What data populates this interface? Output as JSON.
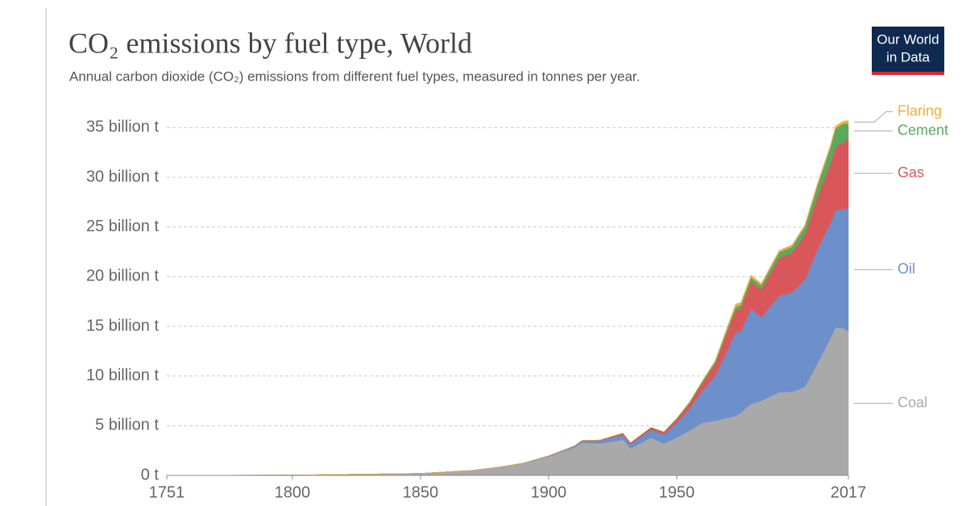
{
  "chart_data": {
    "type": "stacked_area",
    "title": "CO₂ emissions by fuel type, World",
    "subtitle": "Annual carbon dioxide (CO₂) emissions from different fuel types, measured in tonnes per year.",
    "logo": [
      "Our World",
      "in Data"
    ],
    "x": [
      1751,
      1800,
      1850,
      1870,
      1880,
      1890,
      1900,
      1910,
      1913,
      1920,
      1929,
      1932,
      1940,
      1945,
      1950,
      1955,
      1960,
      1965,
      1970,
      1973,
      1975,
      1979,
      1983,
      1990,
      1995,
      2000,
      2005,
      2010,
      2012,
      2015,
      2017
    ],
    "series": [
      {
        "name": "Coal",
        "color": "#a9a9a9",
        "values": [
          9000000,
          30000000,
          200000000,
          500000000,
          800000000,
          1200000000,
          1900000000,
          2800000000,
          3300000000,
          3200000000,
          3600000000,
          2700000000,
          3800000000,
          3200000000,
          3800000000,
          4500000000,
          5300000000,
          5500000000,
          5800000000,
          6000000000,
          6300000000,
          7200000000,
          7500000000,
          8400000000,
          8400000000,
          8900000000,
          11300000000,
          13800000000,
          14900000000,
          14800000000,
          14500000000
        ]
      },
      {
        "name": "Oil",
        "color": "#6d8fca",
        "values": [
          0,
          0,
          0,
          1000000,
          10000000,
          30000000,
          60000000,
          130000000,
          170000000,
          300000000,
          500000000,
          450000000,
          800000000,
          900000000,
          1500000000,
          2200000000,
          3200000000,
          4500000000,
          6900000000,
          8400000000,
          8200000000,
          9600000000,
          8400000000,
          9700000000,
          10000000000,
          10800000000,
          11500000000,
          11600000000,
          11800000000,
          12000000000,
          12400000000
        ]
      },
      {
        "name": "Gas",
        "color": "#d9575a",
        "values": [
          0,
          0,
          0,
          0,
          0,
          0,
          10000000,
          30000000,
          40000000,
          50000000,
          130000000,
          120000000,
          200000000,
          250000000,
          350000000,
          550000000,
          800000000,
          1200000000,
          1900000000,
          2200000000,
          2300000000,
          2700000000,
          2800000000,
          3800000000,
          4000000000,
          4500000000,
          5300000000,
          6000000000,
          6400000000,
          6700000000,
          7000000000
        ]
      },
      {
        "name": "Cement",
        "color": "#5aaa5e",
        "values": [
          0,
          0,
          0,
          0,
          0,
          0,
          0,
          0,
          0,
          10000000,
          30000000,
          25000000,
          40000000,
          40000000,
          80000000,
          110000000,
          150000000,
          220000000,
          300000000,
          350000000,
          350000000,
          400000000,
          420000000,
          550000000,
          600000000,
          800000000,
          1100000000,
          1600000000,
          1800000000,
          1900000000,
          1500000000
        ]
      },
      {
        "name": "Flaring",
        "color": "#f0ad3f",
        "values": [
          0,
          0,
          0,
          0,
          0,
          0,
          0,
          0,
          0,
          0,
          0,
          0,
          0,
          0,
          20000000,
          40000000,
          80000000,
          130000000,
          250000000,
          300000000,
          250000000,
          250000000,
          200000000,
          200000000,
          200000000,
          200000000,
          250000000,
          250000000,
          250000000,
          250000000,
          300000000
        ]
      }
    ],
    "xlim": [
      1751,
      2017
    ],
    "xticks": [
      1751,
      1800,
      1850,
      1900,
      1950,
      2017
    ],
    "ylim": [
      0,
      36000000000
    ],
    "yticks": [
      {
        "value": 0,
        "label": "0 t"
      },
      {
        "value": 5000000000,
        "label": "5 billion t"
      },
      {
        "value": 10000000000,
        "label": "10 billion t"
      },
      {
        "value": 15000000000,
        "label": "15 billion t"
      },
      {
        "value": 20000000000,
        "label": "20 billion t"
      },
      {
        "value": 25000000000,
        "label": "25 billion t"
      },
      {
        "value": 30000000000,
        "label": "30 billion t"
      },
      {
        "value": 35000000000,
        "label": "35 billion t"
      }
    ],
    "grid": true
  }
}
